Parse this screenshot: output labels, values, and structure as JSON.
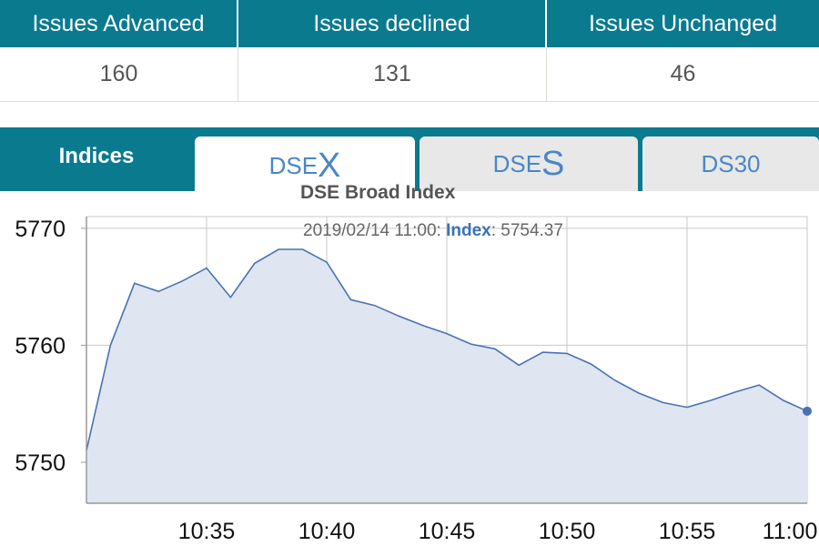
{
  "stats": {
    "headers": [
      "Issues Advanced",
      "Issues declined",
      "Issues Unchanged"
    ],
    "values": [
      "160",
      "131",
      "46"
    ]
  },
  "tabs": {
    "indices_label": "Indices",
    "dsex": {
      "prefix": "DSE",
      "suffix": "X"
    },
    "dses": {
      "prefix": "DSE",
      "suffix": "S"
    },
    "ds30": "DS30"
  },
  "tooltip": {
    "datetime": "2019/02/14 11:00:",
    "series_label": "Index",
    "value": "5754.37"
  },
  "colors": {
    "header_bg": "#0a7a8f",
    "line": "#4a72b0",
    "fill": "#dfe6f1",
    "grid": "#c8c8c8"
  },
  "chart_data": {
    "type": "area",
    "title": "DSE Broad Index",
    "xlabel": "",
    "ylabel": "",
    "ylim": [
      5746.5,
      5771
    ],
    "xlim": [
      "10:30",
      "11:00"
    ],
    "y_ticks": [
      5750,
      5760,
      5770
    ],
    "x_ticks": [
      "10:35",
      "10:40",
      "10:45",
      "10:50",
      "10:55",
      "11:00"
    ],
    "grid": true,
    "series": [
      {
        "name": "Index",
        "x": [
          "10:30",
          "10:31",
          "10:32",
          "10:33",
          "10:34",
          "10:35",
          "10:36",
          "10:37",
          "10:38",
          "10:39",
          "10:40",
          "10:41",
          "10:42",
          "10:43",
          "10:44",
          "10:45",
          "10:46",
          "10:47",
          "10:48",
          "10:49",
          "10:50",
          "10:51",
          "10:52",
          "10:53",
          "10:54",
          "10:55",
          "10:56",
          "10:57",
          "10:58",
          "10:59",
          "11:00"
        ],
        "values": [
          5751.0,
          5760.0,
          5765.3,
          5764.6,
          5765.5,
          5766.6,
          5764.1,
          5767.0,
          5768.2,
          5768.2,
          5767.1,
          5763.9,
          5763.4,
          5762.5,
          5761.7,
          5761.0,
          5760.1,
          5759.7,
          5758.3,
          5759.4,
          5759.3,
          5758.4,
          5757.0,
          5755.9,
          5755.1,
          5754.7,
          5755.3,
          5756.0,
          5756.6,
          5755.3,
          5754.37
        ]
      }
    ]
  }
}
